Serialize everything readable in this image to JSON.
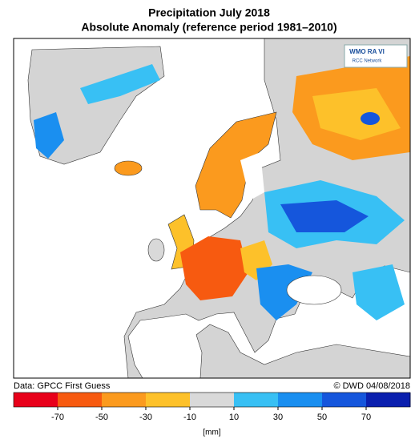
{
  "header": {
    "title": "Precipitation July 2018",
    "subtitle": "Absolute Anomaly (reference period 1981–2010)"
  },
  "logo": {
    "name": "WMO RA VI",
    "network": "RCC Network"
  },
  "footer": {
    "source": "Data: GPCC First Guess",
    "credit": "© DWD 04/08/2018"
  },
  "legend": {
    "ticks": [
      -70,
      -50,
      -30,
      -10,
      10,
      30,
      50,
      70
    ],
    "colors": [
      "#e8001a",
      "#f75a10",
      "#fb9a1e",
      "#fdc12a",
      "#d9d9d9",
      "#38c0f4",
      "#1a8ff0",
      "#1556dc",
      "#0a1fae"
    ],
    "unit": "[mm]"
  }
}
